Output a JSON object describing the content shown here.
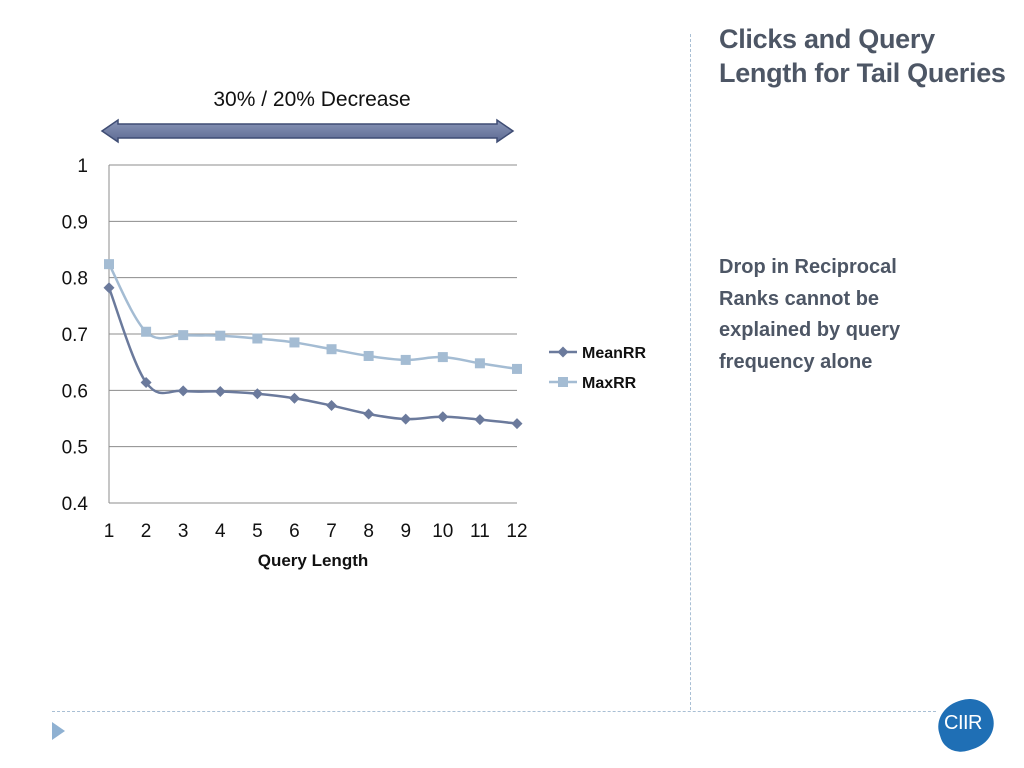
{
  "slide": {
    "title": "Clicks and Query Length for Tail Queries",
    "body": "Drop in Reciprocal Ranks cannot be explained by query frequency alone",
    "logo_text": "CIIR",
    "bullet_icon": "play-triangle-icon"
  },
  "chart_data": {
    "type": "line",
    "title": "",
    "xlabel": "Query Length",
    "ylabel": "",
    "x": [
      1,
      2,
      3,
      4,
      5,
      6,
      7,
      8,
      9,
      10,
      11,
      12
    ],
    "ylim": [
      0.4,
      1
    ],
    "yticks": [
      "0.4",
      "0.5",
      "0.6",
      "0.7",
      "0.8",
      "0.9",
      "1"
    ],
    "grid": true,
    "legend_position": "right",
    "annotation": {
      "text": "30% / 20% Decrease",
      "arrow": "double-headed"
    },
    "series": [
      {
        "name": "MeanRR",
        "color": "#6b7a9c",
        "marker": "diamond",
        "values": [
          0.782,
          0.614,
          0.599,
          0.598,
          0.594,
          0.586,
          0.573,
          0.558,
          0.549,
          0.553,
          0.548,
          0.541
        ]
      },
      {
        "name": "MaxRR",
        "color": "#a4bcd3",
        "marker": "square",
        "values": [
          0.824,
          0.704,
          0.698,
          0.697,
          0.692,
          0.685,
          0.673,
          0.661,
          0.654,
          0.659,
          0.648,
          0.638
        ]
      }
    ]
  }
}
